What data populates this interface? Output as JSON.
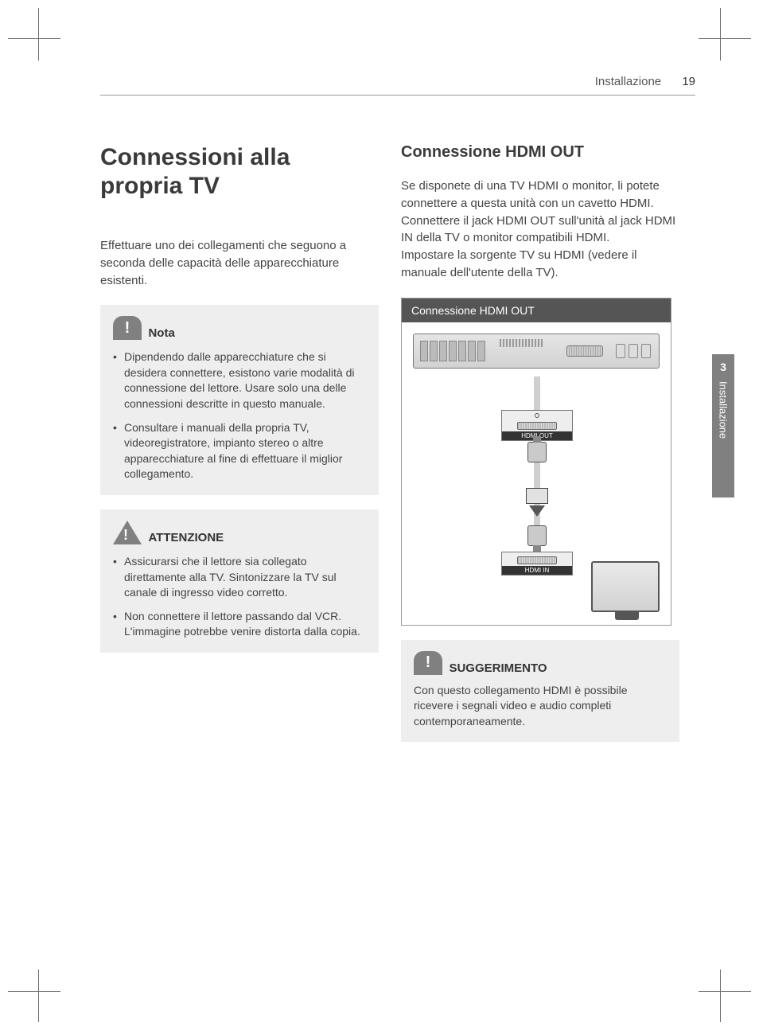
{
  "header": {
    "section": "Installazione",
    "page_number": "19"
  },
  "side_tab": {
    "number": "3",
    "label": "Installazione"
  },
  "left": {
    "title": "Connessioni alla propria TV",
    "intro": "Effettuare uno dei collegamenti che seguono a seconda delle capacità delle apparecchiature esistenti.",
    "note": {
      "label": "Nota",
      "items": [
        "Dipendendo dalle apparecchiature che si desidera connettere, esistono varie modalità di connessione del lettore. Usare solo una delle connessioni descritte in questo manuale.",
        "Consultare i manuali della propria TV, videoregistratore, impianto stereo o altre apparecchiature al fine di effettuare il miglior collegamento."
      ]
    },
    "caution": {
      "label": "ATTENZIONE",
      "items": [
        "Assicurarsi che il lettore sia collegato direttamente alla TV. Sintonizzare la TV sul canale di ingresso video corretto.",
        "Non connettere il lettore passando dal VCR. L'immagine potrebbe venire distorta dalla copia."
      ]
    }
  },
  "right": {
    "title": "Connessione HDMI OUT",
    "body": "Se disponete di una TV HDMI o monitor, li potete connettere a questa unità con un cavetto HDMI.\nConnettere il jack HDMI OUT sull'unità al jack HDMI IN della TV o monitor compatibili HDMI.\nImpostare la sorgente TV su HDMI (vedere il manuale dell'utente della TV).",
    "diagram": {
      "title": "Connessione HDMI OUT",
      "port_out_label": "HDMI OUT",
      "port_in_label": "HDMI IN"
    },
    "tip": {
      "label": "SUGGERIMENTO",
      "text": "Con questo collegamento HDMI è possibile ricevere i segnali video e audio completi contemporaneamente."
    }
  },
  "colors": {
    "text": "#444444",
    "heading": "#3a3a3a",
    "rule": "#9a9a9a",
    "callout_bg": "#eeeeee",
    "icon_bg": "#808080",
    "diagram_header_bg": "#555555",
    "side_tab_bg": "#808080"
  }
}
